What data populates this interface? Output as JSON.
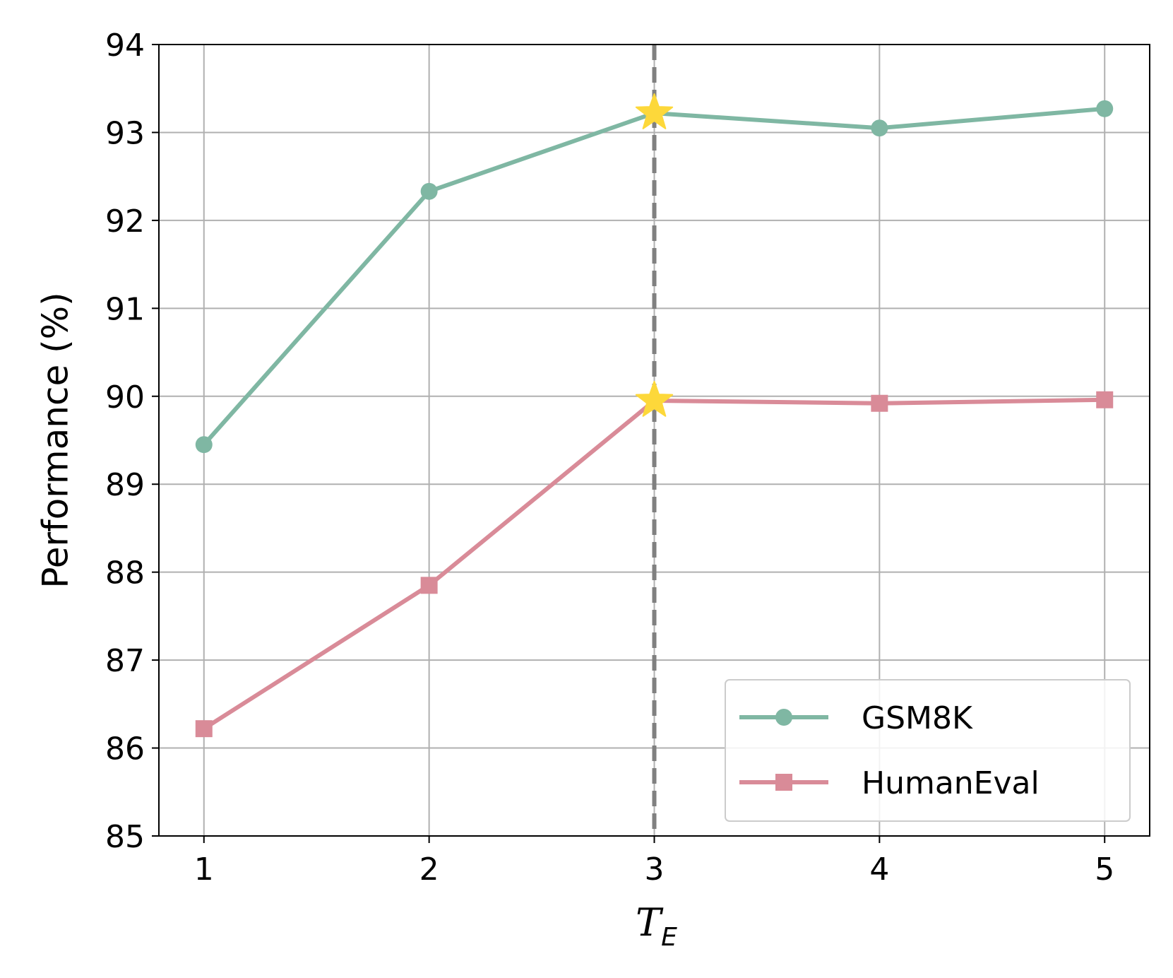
{
  "chart_data": {
    "type": "line",
    "x": [
      1,
      2,
      3,
      4,
      5
    ],
    "xticks": [
      "1",
      "2",
      "3",
      "4",
      "5"
    ],
    "yticks": [
      "85",
      "86",
      "87",
      "88",
      "89",
      "90",
      "91",
      "92",
      "93",
      "94"
    ],
    "ylim": [
      85,
      94
    ],
    "xlim": [
      0.8,
      5.2
    ],
    "xlabel": {
      "main": "T",
      "sub": "E"
    },
    "ylabel": "Performance (%)",
    "grid": true,
    "legend_position": "lower-right",
    "vline": {
      "x": 3,
      "style": "dashed",
      "color": "#808080"
    },
    "highlight_marker": "star",
    "highlight_color": "#fdd83a",
    "highlight_x": 3,
    "series": [
      {
        "name": "GSM8K",
        "marker": "circle",
        "color": "#7fb7a3",
        "values": [
          89.45,
          92.33,
          93.22,
          93.05,
          93.27
        ]
      },
      {
        "name": "HumanEval",
        "marker": "square",
        "color": "#d98b98",
        "values": [
          86.22,
          87.85,
          89.95,
          89.92,
          89.96
        ]
      }
    ]
  }
}
